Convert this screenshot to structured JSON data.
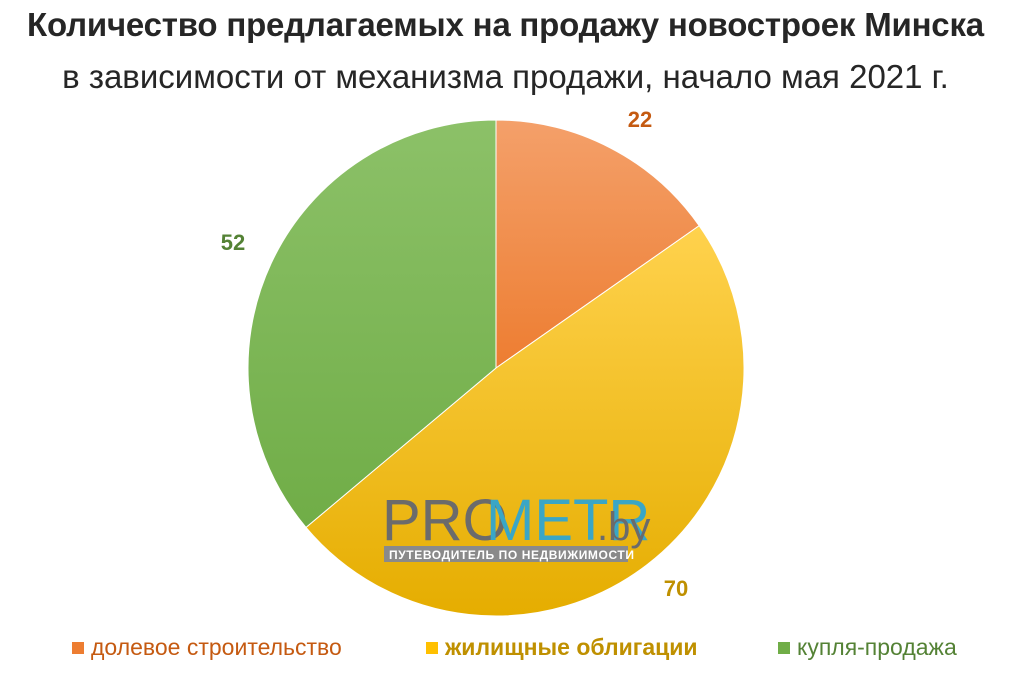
{
  "header": {
    "title": "Количество предлагаемых на продажу новостроек Минска",
    "subtitle": "в зависимости от механизма продажи, начало мая 2021 г."
  },
  "watermark": {
    "part1": "PRO",
    "part2": "METR",
    "part3": ".by",
    "tagline": "ПУТЕВОДИТЕЛЬ ПО НЕДВИЖИМОСТИ"
  },
  "chart_data": {
    "type": "pie",
    "title": "Количество предлагаемых на продажу новостроек Минска",
    "subtitle": "в зависимости от механизма продажи, начало мая 2021 г.",
    "start_angle": "top, clockwise",
    "legend_position": "bottom",
    "slices": [
      {
        "name": "долевое строительство",
        "value": 22,
        "label": "22",
        "color": "#ED7D31",
        "light": "#F4A06A"
      },
      {
        "name": "жилищные облигации",
        "value": 70,
        "label": "70",
        "color": "#FFC000",
        "light": "#FFD24D",
        "dark": "#E5AD00"
      },
      {
        "name": "купля-продажа",
        "value": 52,
        "label": "52",
        "color": "#70AD47",
        "light": "#8CC168"
      }
    ],
    "label_colors": [
      "#C55A11",
      "#BF9000",
      "#548235"
    ]
  }
}
